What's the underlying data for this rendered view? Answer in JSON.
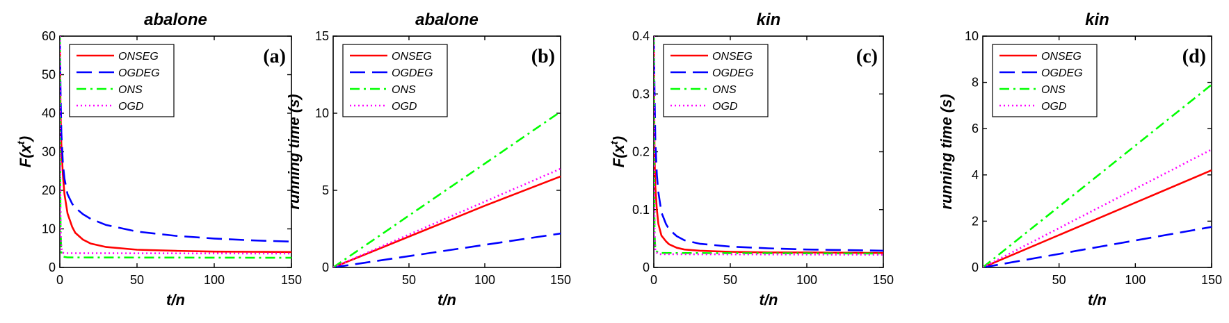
{
  "figure": {
    "panel_labels": [
      "(a)",
      "(b)",
      "(c)",
      "(d)"
    ]
  },
  "styles": {
    "ONSEG": {
      "color": "#ff0000",
      "dash": ""
    },
    "OGDEG": {
      "color": "#0000ff",
      "dash": "22 10"
    },
    "ONS": {
      "color": "#00ff00",
      "dash": "14 6 3 6"
    },
    "OGD": {
      "color": "#ff00ff",
      "dash": "2 4"
    }
  },
  "chart_data": [
    {
      "type": "line",
      "title": "abalone",
      "panel": "(a)",
      "xlabel": "t/n",
      "ylabel": "F(x^t)",
      "xlim": [
        0,
        150
      ],
      "ylim": [
        0,
        60
      ],
      "xticks": [
        0,
        50,
        100,
        150
      ],
      "yticks": [
        0,
        10,
        20,
        30,
        40,
        50,
        60
      ],
      "legend": [
        "ONSEG",
        "OGDEG",
        "ONS",
        "OGD"
      ],
      "series": [
        {
          "name": "ONSEG",
          "x": [
            0,
            0.5,
            1,
            2,
            3,
            5,
            8,
            10,
            15,
            20,
            30,
            50,
            75,
            100,
            125,
            150
          ],
          "y": [
            60,
            40,
            32,
            24,
            19,
            14,
            10.5,
            9,
            7.2,
            6.2,
            5.3,
            4.6,
            4.3,
            4.1,
            4.05,
            4.0
          ]
        },
        {
          "name": "OGDEG",
          "x": [
            0,
            0.5,
            1,
            2,
            3,
            5,
            8,
            10,
            15,
            20,
            30,
            50,
            75,
            100,
            125,
            150
          ],
          "y": [
            60,
            45,
            35,
            27,
            23,
            19,
            16.5,
            15.5,
            13.8,
            12.6,
            11,
            9.3,
            8.2,
            7.5,
            7.0,
            6.7
          ]
        },
        {
          "name": "ONS",
          "x": [
            0,
            0.2,
            0.5,
            1,
            2,
            5,
            150
          ],
          "y": [
            60,
            30,
            10,
            4,
            2.8,
            2.6,
            2.5
          ]
        },
        {
          "name": "OGD",
          "x": [
            0,
            0.2,
            0.5,
            1,
            2,
            5,
            150
          ],
          "y": [
            60,
            30,
            10,
            5,
            3.8,
            3.7,
            3.6
          ]
        }
      ]
    },
    {
      "type": "line",
      "title": "abalone",
      "panel": "(b)",
      "xlabel": "t/n",
      "ylabel": "running time (s)",
      "xlim": [
        0,
        150
      ],
      "ylim": [
        0,
        15
      ],
      "xticks": [
        50,
        100,
        150
      ],
      "yticks": [
        0,
        5,
        10,
        15
      ],
      "legend": [
        "ONSEG",
        "OGDEG",
        "ONS",
        "OGD"
      ],
      "series": [
        {
          "name": "ONSEG",
          "x": [
            0,
            90,
            100,
            150
          ],
          "y": [
            0,
            3.6,
            4.0,
            5.9
          ]
        },
        {
          "name": "OGDEG",
          "x": [
            0,
            150
          ],
          "y": [
            0,
            2.2
          ]
        },
        {
          "name": "ONS",
          "x": [
            0,
            150
          ],
          "y": [
            0,
            10.1
          ]
        },
        {
          "name": "OGD",
          "x": [
            0,
            150
          ],
          "y": [
            0,
            6.4
          ]
        }
      ]
    },
    {
      "type": "line",
      "title": "kin",
      "panel": "(c)",
      "xlabel": "t/n",
      "ylabel": "F(x^t)",
      "xlim": [
        0,
        150
      ],
      "ylim": [
        0,
        0.4
      ],
      "xticks": [
        0,
        50,
        100,
        150
      ],
      "yticks": [
        0,
        0.1,
        0.2,
        0.3,
        0.4
      ],
      "legend": [
        "ONSEG",
        "OGDEG",
        "ONS",
        "OGD"
      ],
      "series": [
        {
          "name": "ONSEG",
          "x": [
            0,
            0.5,
            1,
            2,
            3,
            5,
            8,
            10,
            15,
            20,
            30,
            50,
            75,
            100,
            150
          ],
          "y": [
            0.4,
            0.19,
            0.14,
            0.1,
            0.075,
            0.055,
            0.045,
            0.04,
            0.034,
            0.031,
            0.029,
            0.027,
            0.026,
            0.026,
            0.025
          ]
        },
        {
          "name": "OGDEG",
          "x": [
            0,
            0.5,
            1,
            2,
            3,
            5,
            8,
            10,
            15,
            20,
            30,
            50,
            75,
            100,
            150
          ],
          "y": [
            0.4,
            0.3,
            0.22,
            0.16,
            0.13,
            0.095,
            0.075,
            0.066,
            0.054,
            0.047,
            0.041,
            0.036,
            0.033,
            0.031,
            0.029
          ]
        },
        {
          "name": "ONS",
          "x": [
            0,
            0.2,
            0.5,
            1,
            3,
            150
          ],
          "y": [
            0.4,
            0.2,
            0.06,
            0.03,
            0.025,
            0.024
          ]
        },
        {
          "name": "OGD",
          "x": [
            0,
            0.2,
            0.5,
            1,
            3,
            150
          ],
          "y": [
            0.4,
            0.2,
            0.06,
            0.028,
            0.023,
            0.022
          ]
        }
      ]
    },
    {
      "type": "line",
      "title": "kin",
      "panel": "(d)",
      "xlabel": "t/n",
      "ylabel": "running time (s)",
      "xlim": [
        0,
        150
      ],
      "ylim": [
        0,
        10
      ],
      "xticks": [
        50,
        100,
        150
      ],
      "yticks": [
        0,
        2,
        4,
        6,
        8,
        10
      ],
      "legend": [
        "ONSEG",
        "OGDEG",
        "ONS",
        "OGD"
      ],
      "series": [
        {
          "name": "ONSEG",
          "x": [
            0,
            150
          ],
          "y": [
            0,
            4.2
          ]
        },
        {
          "name": "OGDEG",
          "x": [
            0,
            150
          ],
          "y": [
            0,
            1.75
          ]
        },
        {
          "name": "ONS",
          "x": [
            0,
            150
          ],
          "y": [
            0,
            7.9
          ]
        },
        {
          "name": "OGD",
          "x": [
            0,
            150
          ],
          "y": [
            0,
            5.1
          ]
        }
      ]
    }
  ]
}
